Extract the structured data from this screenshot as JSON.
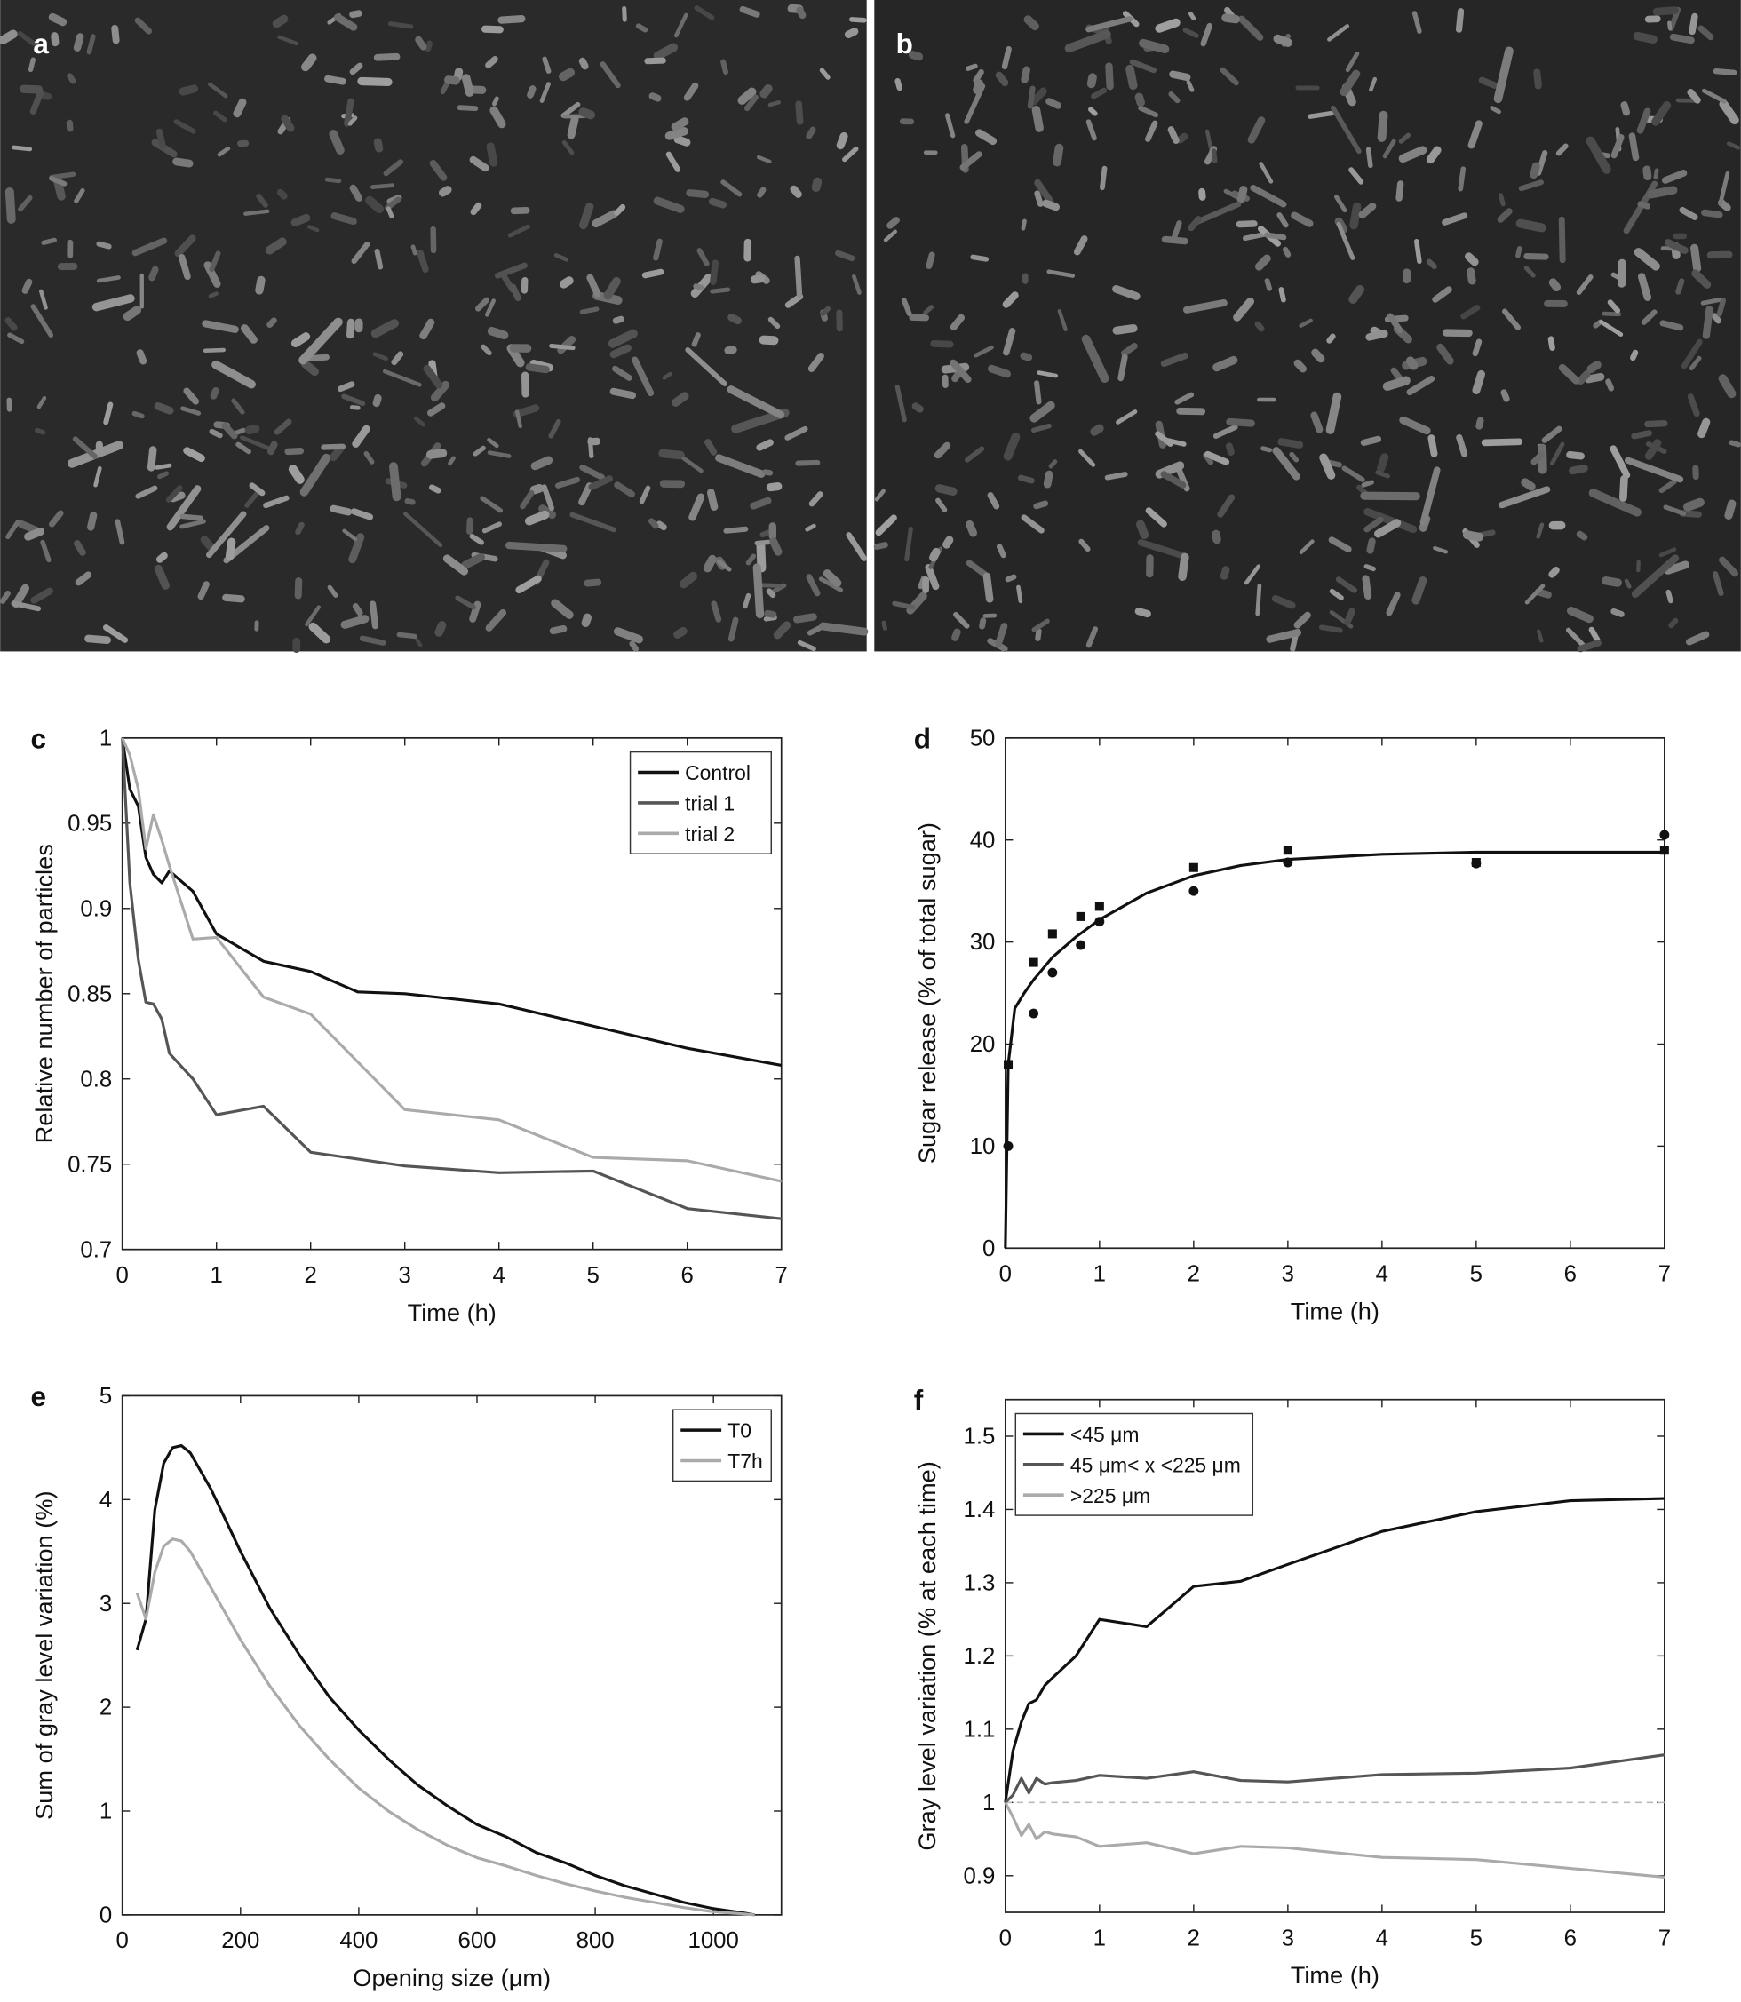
{
  "images": [
    {
      "label": "a"
    },
    {
      "label": "b"
    }
  ],
  "chart_data": [
    {
      "type": "line",
      "panel": "c",
      "xlabel": "Time (h)",
      "ylabel": "Relative number of particles",
      "xlim": [
        0,
        7
      ],
      "xticks": [
        0,
        1,
        2,
        3,
        4,
        5,
        6,
        7
      ],
      "ylim": [
        0.7,
        1
      ],
      "yticks": [
        0.7,
        0.75,
        0.8,
        0.85,
        0.9,
        0.95,
        1
      ],
      "legend": "upper right",
      "x": [
        0,
        0.08,
        0.17,
        0.25,
        0.33,
        0.42,
        0.5,
        0.75,
        1,
        1.5,
        2,
        2.5,
        3,
        4,
        5,
        6,
        7
      ],
      "series": [
        {
          "name": "Control",
          "color": "#111111",
          "values": [
            1,
            0.97,
            0.96,
            0.93,
            0.92,
            0.915,
            0.922,
            0.91,
            0.885,
            0.869,
            0.863,
            0.851,
            0.85,
            0.844,
            0.831,
            0.818,
            0.808
          ]
        },
        {
          "name": "trial 1",
          "color": "#555555",
          "values": [
            1,
            0.915,
            0.87,
            0.845,
            0.844,
            0.835,
            0.815,
            0.8,
            0.779,
            0.784,
            0.757,
            0.753,
            0.749,
            0.745,
            0.746,
            0.724,
            0.718
          ]
        },
        {
          "name": "trial 2",
          "color": "#aaaaaa",
          "values": [
            1,
            0.99,
            0.97,
            0.935,
            0.955,
            0.94,
            0.925,
            0.882,
            0.883,
            0.848,
            0.838,
            0.81,
            0.782,
            0.776,
            0.754,
            0.752,
            0.74
          ]
        }
      ]
    },
    {
      "type": "scatter",
      "panel": "d",
      "xlabel": "Time (h)",
      "ylabel": "Sugar release (% of total sugar)",
      "xlim": [
        0,
        7
      ],
      "xticks": [
        0,
        1,
        2,
        3,
        4,
        5,
        6,
        7
      ],
      "ylim": [
        0,
        50
      ],
      "yticks": [
        0,
        10,
        20,
        30,
        40,
        50
      ],
      "series": [
        {
          "marker": "square",
          "color": "#111111",
          "x": [
            0.03,
            0.3,
            0.5,
            0.8,
            1,
            2,
            3,
            5,
            7
          ],
          "values": [
            18,
            28,
            30.8,
            32.5,
            33.5,
            37.3,
            39,
            37.8,
            39
          ]
        },
        {
          "marker": "circle",
          "color": "#111111",
          "x": [
            0.03,
            0.3,
            0.5,
            0.8,
            1,
            2,
            3,
            5,
            7
          ],
          "values": [
            10,
            23,
            27,
            29.7,
            32,
            35,
            37.8,
            37.7,
            40.5
          ]
        },
        {
          "marker": "line",
          "color": "#111111",
          "x": [
            0,
            0.03,
            0.1,
            0.2,
            0.3,
            0.5,
            0.75,
            1,
            1.5,
            2,
            2.5,
            3,
            4,
            5,
            6,
            7
          ],
          "values": [
            0,
            18,
            23.5,
            25,
            26.3,
            28.5,
            30.5,
            32.2,
            34.8,
            36.5,
            37.5,
            38.1,
            38.6,
            38.8,
            38.8,
            38.8
          ]
        }
      ]
    },
    {
      "type": "line",
      "panel": "e",
      "xlabel": "Opening size (μm)",
      "ylabel": "Sum of gray level variation (%)",
      "xlim": [
        0,
        1115
      ],
      "xticks": [
        0,
        200,
        400,
        600,
        800,
        1000
      ],
      "ylim": [
        0,
        5
      ],
      "yticks": [
        0,
        1,
        2,
        3,
        4,
        5
      ],
      "legend": "upper right",
      "x": [
        25,
        40,
        55,
        70,
        85,
        100,
        115,
        130,
        150,
        175,
        200,
        250,
        300,
        350,
        400,
        450,
        500,
        550,
        600,
        650,
        700,
        750,
        800,
        850,
        900,
        950,
        1000,
        1050,
        1070
      ],
      "series": [
        {
          "name": "T0",
          "color": "#111111",
          "values": [
            2.55,
            2.85,
            3.9,
            4.35,
            4.5,
            4.52,
            4.45,
            4.3,
            4.1,
            3.8,
            3.5,
            2.95,
            2.5,
            2.1,
            1.78,
            1.5,
            1.25,
            1.05,
            0.87,
            0.75,
            0.6,
            0.5,
            0.38,
            0.28,
            0.2,
            0.12,
            0.06,
            0.02,
            0
          ]
        },
        {
          "name": "T7h",
          "color": "#aaaaaa",
          "values": [
            3.1,
            2.85,
            3.3,
            3.55,
            3.62,
            3.6,
            3.5,
            3.35,
            3.15,
            2.9,
            2.65,
            2.2,
            1.82,
            1.5,
            1.22,
            1.0,
            0.82,
            0.67,
            0.55,
            0.47,
            0.38,
            0.3,
            0.23,
            0.17,
            0.12,
            0.07,
            0.03,
            0.01,
            0
          ]
        }
      ]
    },
    {
      "type": "line",
      "panel": "f",
      "xlabel": "Time (h)",
      "ylabel": "Gray level variation (% at each time)",
      "xlim": [
        0,
        7
      ],
      "xticks": [
        0,
        1,
        2,
        3,
        4,
        5,
        6,
        7
      ],
      "ylim": [
        0.85,
        1.55
      ],
      "yticks": [
        0.9,
        1,
        1.1,
        1.2,
        1.3,
        1.4,
        1.5
      ],
      "legend": "upper left",
      "reference_line": 1,
      "x": [
        0,
        0.08,
        0.17,
        0.25,
        0.33,
        0.42,
        0.5,
        0.75,
        1,
        1.5,
        2,
        2.5,
        3,
        4,
        5,
        6,
        7
      ],
      "series": [
        {
          "name": "<45 μm",
          "color": "#111111",
          "values": [
            1,
            1.07,
            1.11,
            1.135,
            1.14,
            1.16,
            1.17,
            1.2,
            1.25,
            1.24,
            1.295,
            1.302,
            1.325,
            1.37,
            1.397,
            1.412,
            1.415
          ]
        },
        {
          "name": "45 μm< x <225 μm",
          "color": "#555555",
          "values": [
            1,
            1.01,
            1.033,
            1.013,
            1.033,
            1.025,
            1.027,
            1.03,
            1.037,
            1.033,
            1.042,
            1.03,
            1.028,
            1.038,
            1.04,
            1.047,
            1.065
          ]
        },
        {
          "name": ">225  μm",
          "color": "#aaaaaa",
          "values": [
            1,
            0.98,
            0.955,
            0.97,
            0.95,
            0.96,
            0.957,
            0.953,
            0.94,
            0.945,
            0.93,
            0.94,
            0.938,
            0.925,
            0.922,
            0.91,
            0.898
          ]
        }
      ]
    }
  ]
}
